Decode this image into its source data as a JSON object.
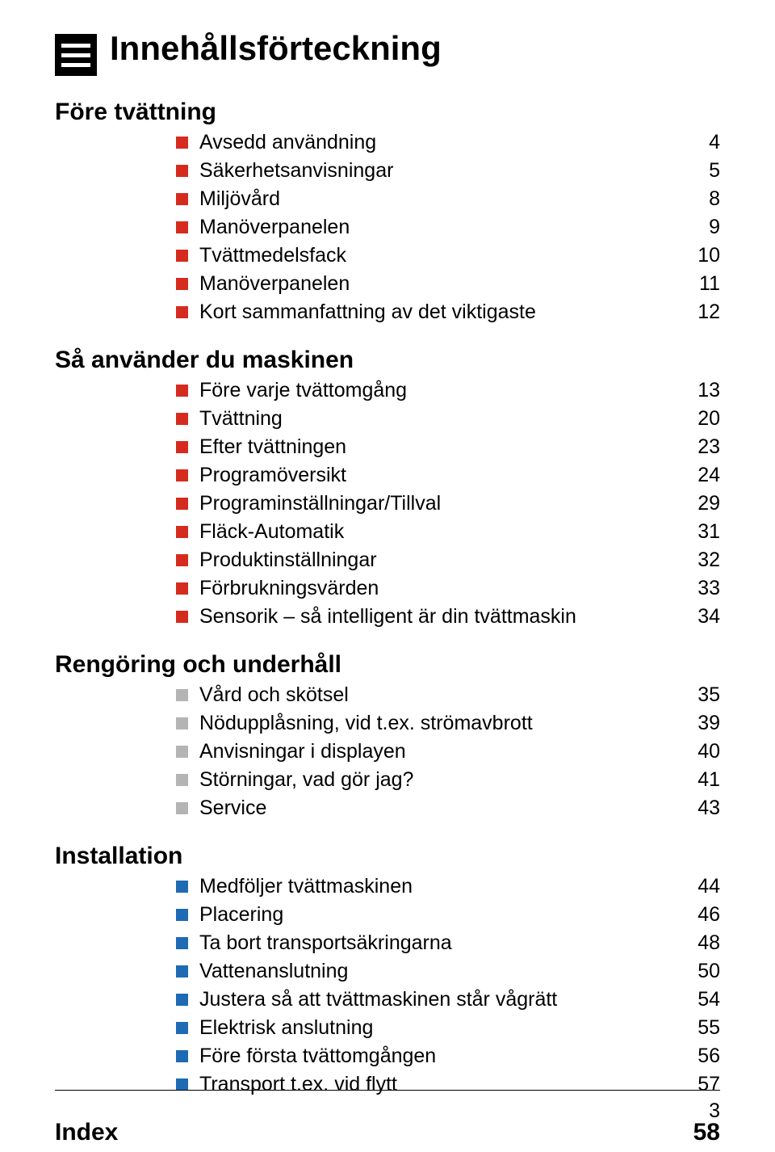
{
  "colors": {
    "bullet_red": "#d52b1e",
    "bullet_grey": "#b4b4b4",
    "bullet_blue": "#1e6ab4",
    "bg": "#ffffff",
    "text": "#000000"
  },
  "typography": {
    "title_fontsize": 42,
    "section_fontsize": 30,
    "row_fontsize": 25,
    "footer_fontsize": 25,
    "font_family": "Arial"
  },
  "title": "Innehållsförteckning",
  "sections": [
    {
      "heading": "Före tvättning",
      "items": [
        {
          "label": "Avsedd användning",
          "page": "4",
          "color": "#d52b1e"
        },
        {
          "label": "Säkerhetsanvisningar",
          "page": "5",
          "color": "#d52b1e"
        },
        {
          "label": "Miljövård",
          "page": "8",
          "color": "#d52b1e"
        },
        {
          "label": "Manöverpanelen",
          "page": "9",
          "color": "#d52b1e"
        },
        {
          "label": "Tvättmedelsfack",
          "page": "10",
          "color": "#d52b1e"
        },
        {
          "label": "Manöverpanelen",
          "page": "11",
          "color": "#d52b1e"
        },
        {
          "label": "Kort sammanfattning av det viktigaste",
          "page": "12",
          "color": "#d52b1e"
        }
      ]
    },
    {
      "heading": "Så använder du maskinen",
      "items": [
        {
          "label": "Före varje tvättomgång",
          "page": "13",
          "color": "#d52b1e"
        },
        {
          "label": "Tvättning",
          "page": "20",
          "color": "#d52b1e"
        },
        {
          "label": "Efter tvättningen",
          "page": "23",
          "color": "#d52b1e"
        },
        {
          "label": "Programöversikt",
          "page": "24",
          "color": "#d52b1e"
        },
        {
          "label": "Programinställningar/Tillval",
          "page": "29",
          "color": "#d52b1e"
        },
        {
          "label": "Fläck-Automatik",
          "page": "31",
          "color": "#d52b1e"
        },
        {
          "label": "Produktinställningar",
          "page": "32",
          "color": "#d52b1e"
        },
        {
          "label": "Förbrukningsvärden",
          "page": "33",
          "color": "#d52b1e"
        },
        {
          "label": "Sensorik – så intelligent är din tvättmaskin",
          "page": "34",
          "color": "#d52b1e"
        }
      ]
    },
    {
      "heading": "Rengöring och underhåll",
      "items": [
        {
          "label": "Vård och skötsel",
          "page": "35",
          "color": "#b4b4b4"
        },
        {
          "label": "Nödupplåsning, vid t.ex. strömavbrott",
          "page": "39",
          "color": "#b4b4b4"
        },
        {
          "label": "Anvisningar i displayen",
          "page": "40",
          "color": "#b4b4b4"
        },
        {
          "label": "Störningar, vad gör jag?",
          "page": "41",
          "color": "#b4b4b4"
        },
        {
          "label": "Service",
          "page": "43",
          "color": "#b4b4b4"
        }
      ]
    },
    {
      "heading": "Installation",
      "items": [
        {
          "label": "Medföljer tvättmaskinen",
          "page": "44",
          "color": "#1e6ab4"
        },
        {
          "label": "Placering",
          "page": "46",
          "color": "#1e6ab4"
        },
        {
          "label": "Ta bort transportsäkringarna",
          "page": "48",
          "color": "#1e6ab4"
        },
        {
          "label": "Vattenanslutning",
          "page": "50",
          "color": "#1e6ab4"
        },
        {
          "label": "Justera så att tvättmaskinen står vågrätt",
          "page": "54",
          "color": "#1e6ab4"
        },
        {
          "label": "Elektrisk anslutning",
          "page": "55",
          "color": "#1e6ab4"
        },
        {
          "label": "Före första tvättomgången",
          "page": "56",
          "color": "#1e6ab4"
        },
        {
          "label": "Transport t.ex. vid flytt",
          "page": "57",
          "color": "#1e6ab4"
        }
      ]
    }
  ],
  "index": {
    "label": "Index",
    "page": "58"
  },
  "footer": {
    "page_number": "3"
  }
}
